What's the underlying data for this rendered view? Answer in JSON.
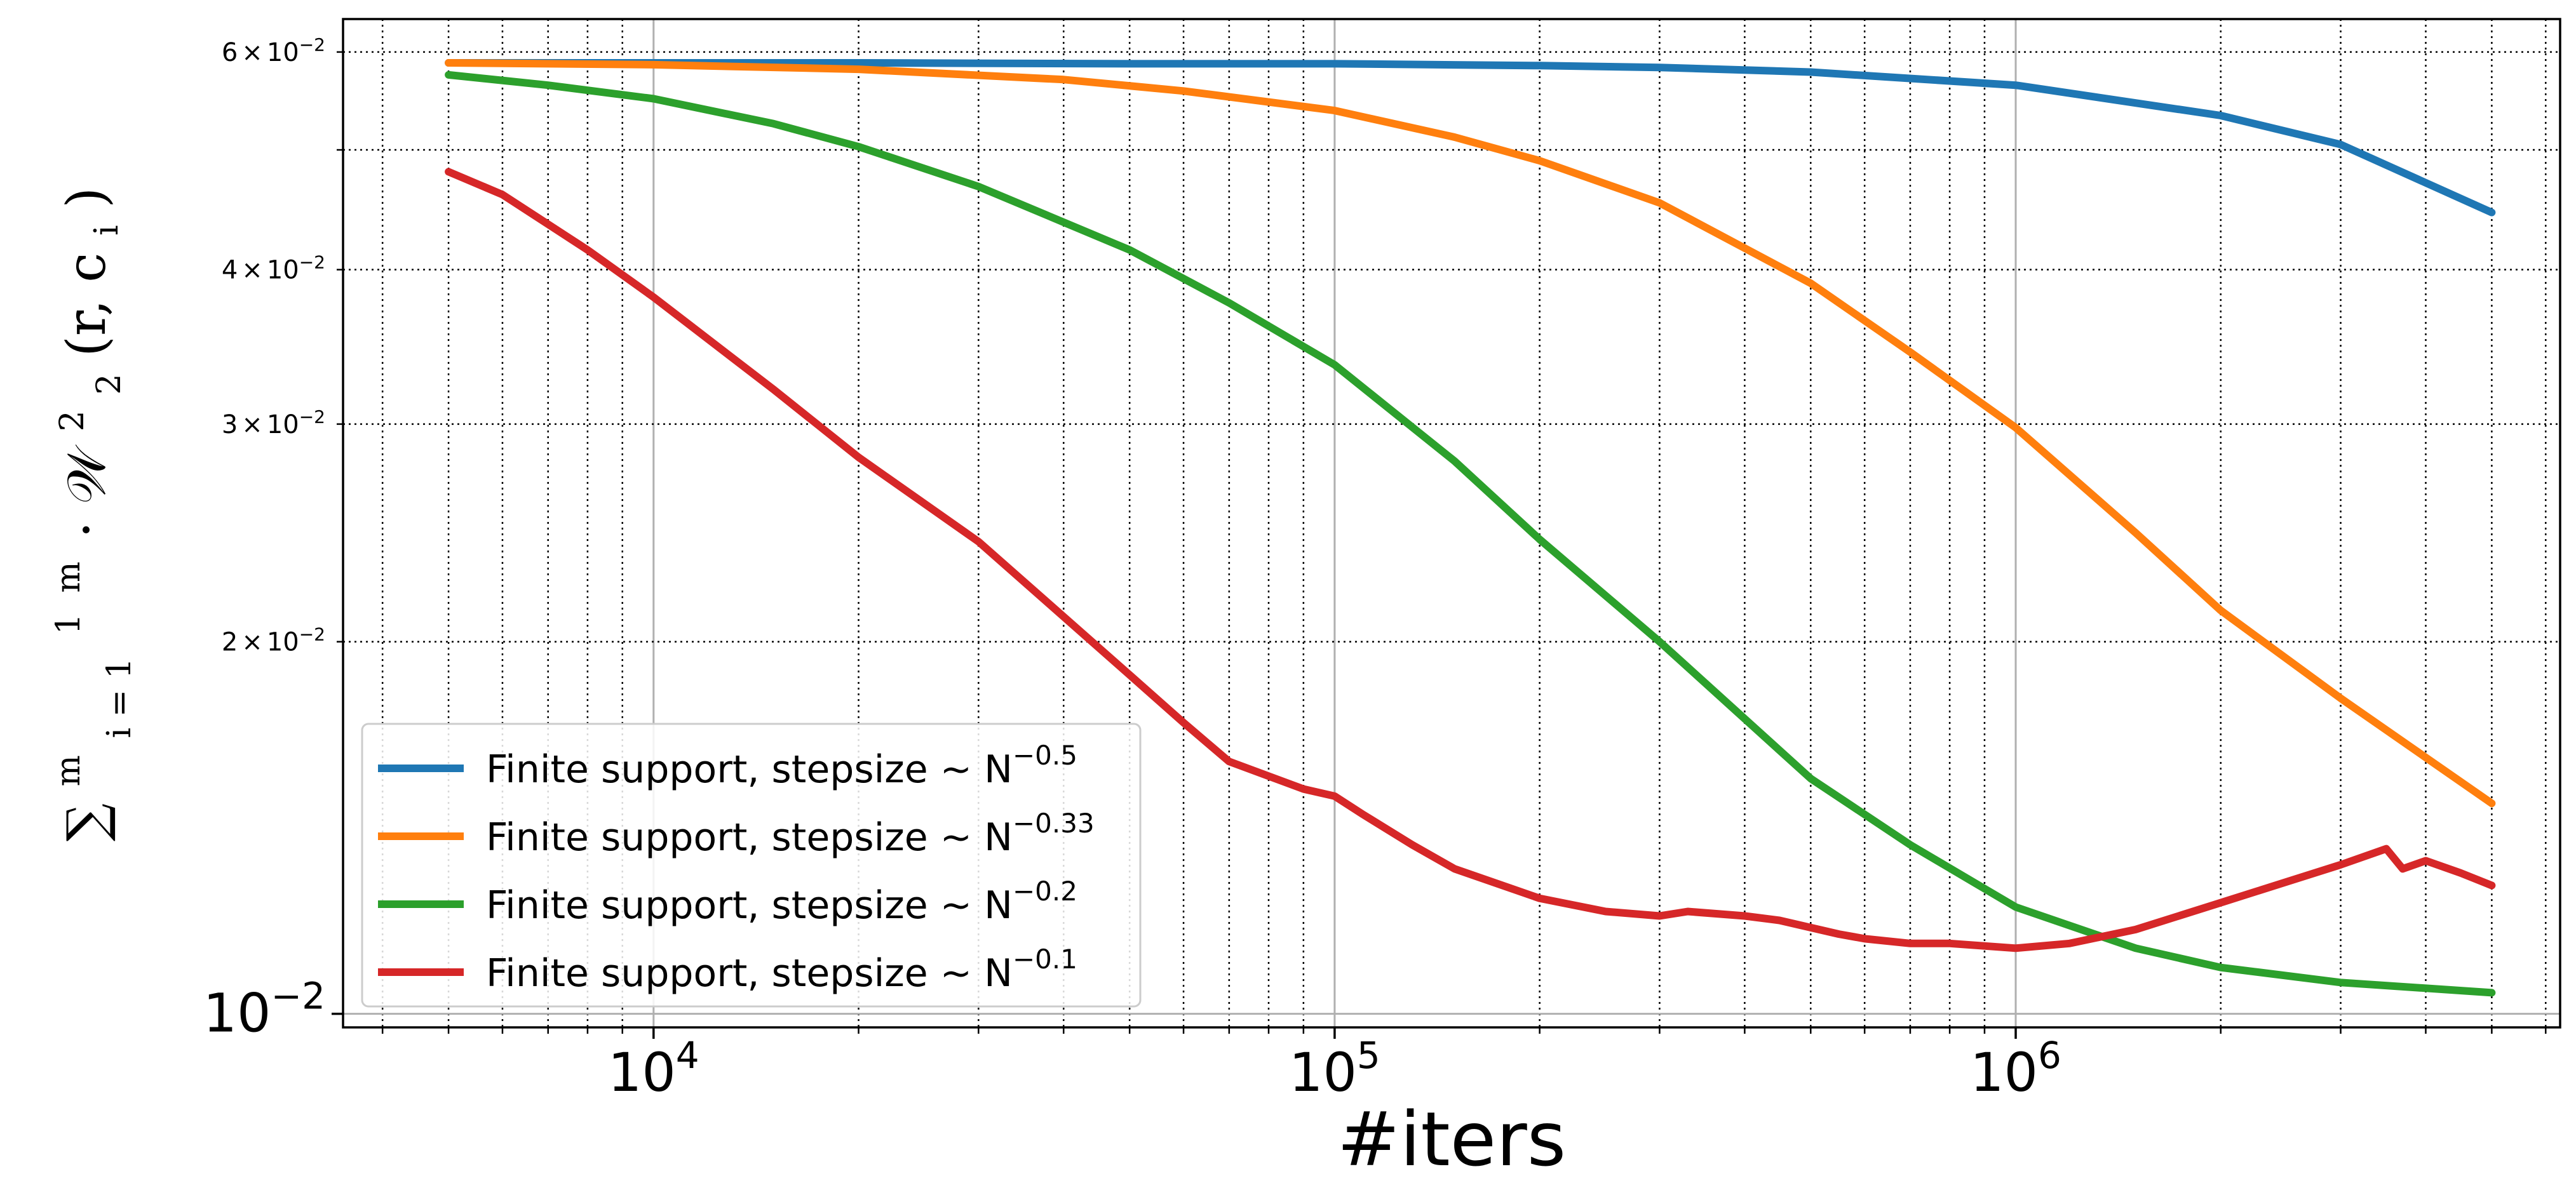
{
  "chart_data": {
    "type": "line",
    "xlabel": "#iters",
    "ylabel": {
      "sum": "∑",
      "sum_upper": "m",
      "sum_lower": "i = 1",
      "frac_num": "1",
      "frac_den": "m",
      "rest": "· 𝒲",
      "rest_sup": "2",
      "rest_sub": "2",
      "args": "(r, c",
      "args_sub": "i",
      "args_close": ")"
    },
    "x_scale": "log",
    "y_scale": "log",
    "xlim": [
      3500,
      6300000
    ],
    "ylim": [
      0.00975,
      0.0638
    ],
    "grid": true,
    "legend_position": "lower-left",
    "x_ticks": [
      {
        "value": 10000,
        "base": "10",
        "exp": "4"
      },
      {
        "value": 100000,
        "base": "10",
        "exp": "5"
      },
      {
        "value": 1000000,
        "base": "10",
        "exp": "6"
      }
    ],
    "y_ticks": [
      {
        "value": 0.01,
        "base": "10",
        "exp": "−2",
        "size": "major"
      },
      {
        "value": 0.02,
        "mant": "2",
        "base": "10",
        "exp": "−2",
        "size": "minor"
      },
      {
        "value": 0.03,
        "mant": "3",
        "base": "10",
        "exp": "−2",
        "size": "minor"
      },
      {
        "value": 0.04,
        "mant": "4",
        "base": "10",
        "exp": "−2",
        "size": "minor"
      },
      {
        "value": 0.06,
        "mant": "6",
        "base": "10",
        "exp": "−2",
        "size": "minor"
      }
    ],
    "y_unlabeled_minor": [
      0.05
    ],
    "series": [
      {
        "name": "Finite support, stepsize ~ N",
        "exp": "−0.5",
        "color": "#1f77b4",
        "x": [
          5000,
          10000,
          20000,
          50000,
          100000,
          200000,
          300000,
          500000,
          1000000,
          2000000,
          3000000,
          5000000
        ],
        "y": [
          0.0588,
          0.0588,
          0.0588,
          0.0587,
          0.0587,
          0.0585,
          0.0583,
          0.0578,
          0.0564,
          0.0533,
          0.0505,
          0.0445
        ]
      },
      {
        "name": "Finite support, stepsize ~ N",
        "exp": "−0.33",
        "color": "#ff7f0e",
        "x": [
          5000,
          10000,
          20000,
          40000,
          60000,
          100000,
          150000,
          200000,
          300000,
          500000,
          700000,
          1000000,
          1500000,
          2000000,
          3000000,
          5000000
        ],
        "y": [
          0.0588,
          0.0586,
          0.0581,
          0.057,
          0.0558,
          0.0538,
          0.0512,
          0.049,
          0.0453,
          0.039,
          0.0343,
          0.0298,
          0.0245,
          0.0212,
          0.018,
          0.0148
        ]
      },
      {
        "name": "Finite support, stepsize ~ N",
        "exp": "−0.2",
        "color": "#2ca02c",
        "x": [
          5000,
          7000,
          10000,
          15000,
          20000,
          30000,
          50000,
          70000,
          100000,
          150000,
          200000,
          300000,
          500000,
          700000,
          1000000,
          1500000,
          2000000,
          3000000,
          5000000
        ],
        "y": [
          0.0575,
          0.0564,
          0.055,
          0.0525,
          0.0503,
          0.0467,
          0.0415,
          0.0376,
          0.0335,
          0.028,
          0.0242,
          0.02,
          0.0155,
          0.0137,
          0.0122,
          0.0113,
          0.0109,
          0.0106,
          0.0104
        ]
      },
      {
        "name": "Finite support, stepsize ~ N",
        "exp": "−0.1",
        "color": "#d62728",
        "x": [
          5000,
          6000,
          8000,
          10000,
          15000,
          20000,
          30000,
          50000,
          60000,
          70000,
          90000,
          100000,
          110000,
          130000,
          150000,
          200000,
          250000,
          300000,
          330000,
          400000,
          450000,
          550000,
          600000,
          700000,
          800000,
          1000000,
          1200000,
          1500000,
          2000000,
          3000000,
          3500000,
          3700000,
          4000000,
          4500000,
          5000000
        ],
        "y": [
          0.048,
          0.046,
          0.0415,
          0.038,
          0.032,
          0.0282,
          0.0241,
          0.0188,
          0.0172,
          0.016,
          0.0152,
          0.015,
          0.0145,
          0.0137,
          0.0131,
          0.0124,
          0.0121,
          0.012,
          0.0121,
          0.012,
          0.0119,
          0.0116,
          0.0115,
          0.0114,
          0.0114,
          0.0113,
          0.0114,
          0.0117,
          0.0123,
          0.0132,
          0.0136,
          0.0131,
          0.0133,
          0.013,
          0.0127
        ]
      }
    ]
  }
}
